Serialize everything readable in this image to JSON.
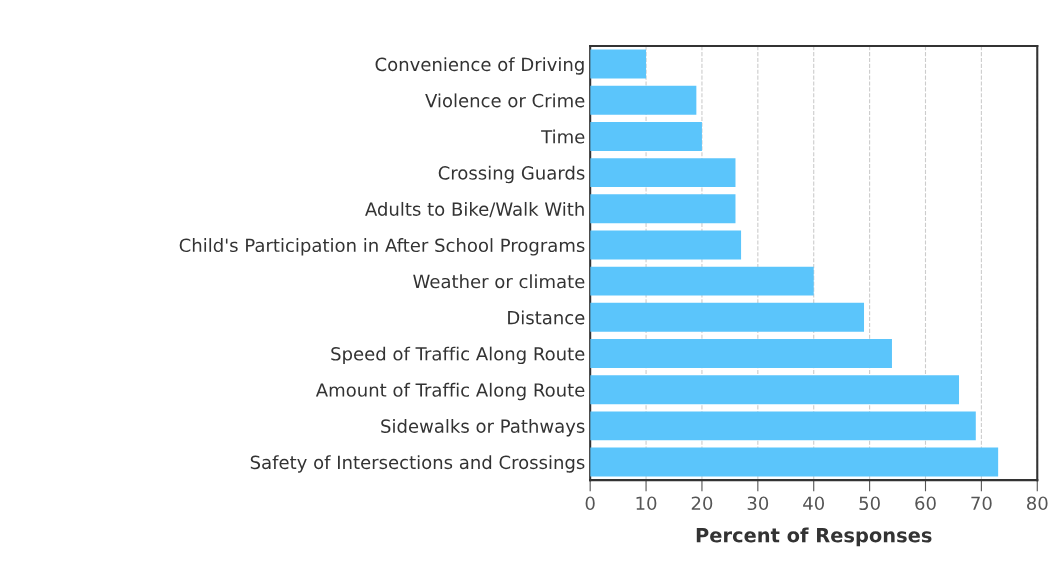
{
  "chart_data": {
    "type": "bar",
    "orientation": "horizontal",
    "xlabel": "Percent of Responses",
    "categories": [
      "Convenience of Driving",
      "Violence or Crime",
      "Time",
      "Crossing Guards",
      "Adults to Bike/Walk With",
      "Child's Participation in After School Programs",
      "Weather or climate",
      "Distance",
      "Speed of Traffic Along Route",
      "Amount of Traffic Along Route",
      "Sidewalks or Pathways",
      "Safety of Intersections and Crossings"
    ],
    "values": [
      10,
      19,
      20,
      26,
      26,
      27,
      40,
      49,
      54,
      66,
      69,
      73
    ],
    "color": "#5bc5fb",
    "xlim": [
      0,
      80
    ],
    "xticks": [
      0,
      10,
      20,
      30,
      40,
      50,
      60,
      70,
      80
    ],
    "grid": "x"
  }
}
